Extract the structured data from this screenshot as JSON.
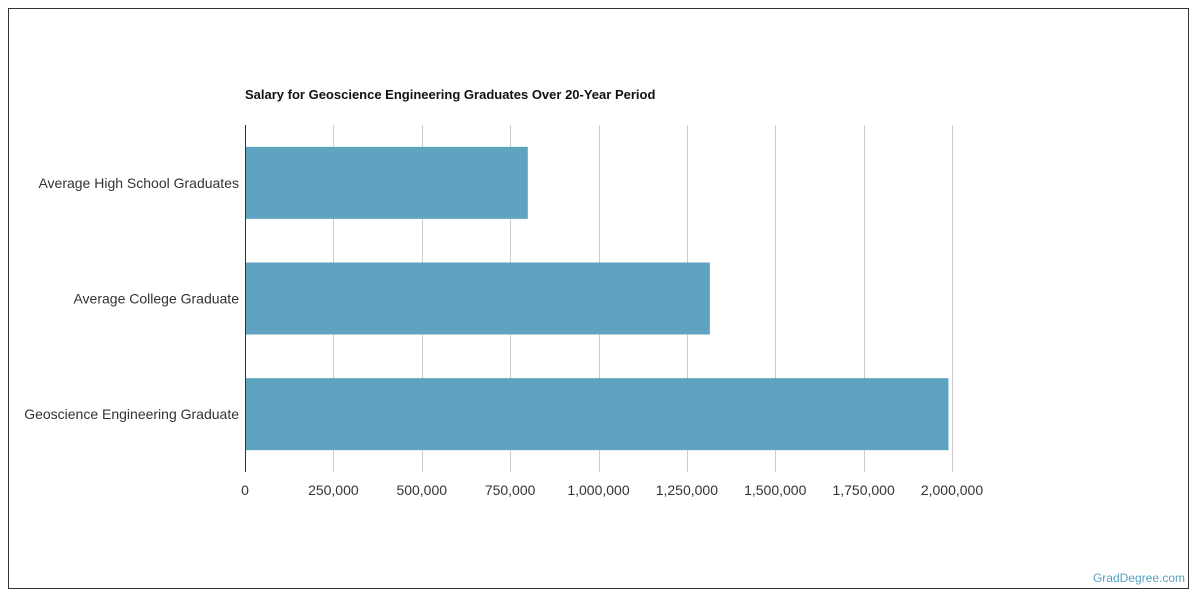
{
  "chart_data": {
    "type": "bar",
    "orientation": "horizontal",
    "title": "Salary for Geoscience Engineering Graduates Over 20-Year Period",
    "xlabel": "",
    "ylabel": "",
    "categories": [
      "Average High School Graduates",
      "Average College Graduate",
      "Geoscience Engineering Graduate"
    ],
    "values": [
      800000,
      1315000,
      1990000
    ],
    "xlim": [
      0,
      2000000
    ],
    "ticks": [
      "0",
      "250,000",
      "500,000",
      "750,000",
      "1,000,000",
      "1,250,000",
      "1,500,000",
      "1,750,000",
      "2,000,000"
    ],
    "tick_values": [
      0,
      250000,
      500000,
      750000,
      1000000,
      1250000,
      1500000,
      1750000,
      2000000
    ],
    "grid": true,
    "bar_color": "#5ea3bf",
    "grid_color": "#cccccc",
    "axis_color": "#333333"
  },
  "footer": {
    "source": "GradDegree.com"
  }
}
